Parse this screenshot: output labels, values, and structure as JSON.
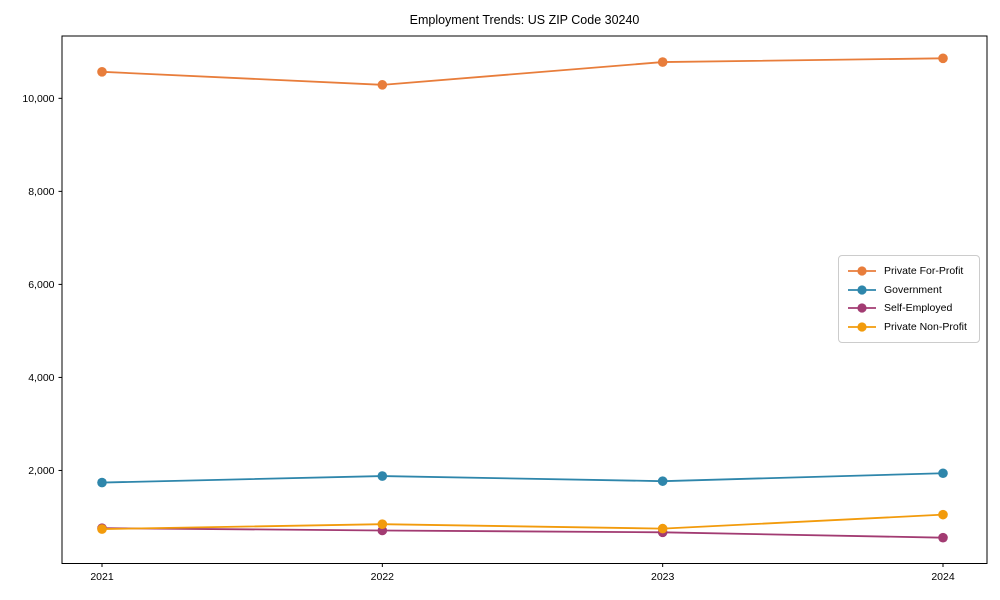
{
  "figure": {
    "background": "#ffffff",
    "axis_color": "#000000",
    "text_color": "#000000",
    "legend_border_color": "#cccccc"
  },
  "chart_data": {
    "type": "line",
    "title": "Employment Trends: US ZIP Code 30240",
    "xlabel": "",
    "ylabel": "",
    "grid": false,
    "legend_position": "center-right",
    "x": [
      2021,
      2022,
      2023,
      2024
    ],
    "x_tick_labels": [
      "2021",
      "2022",
      "2023",
      "2024"
    ],
    "ylim": [
      0,
      11340
    ],
    "yticks": [
      2000,
      4000,
      6000,
      8000,
      10000
    ],
    "ytick_labels": [
      "2,000",
      "4,000",
      "6,000",
      "8,000",
      "10,000"
    ],
    "series": [
      {
        "name": "Private For-Profit",
        "color": "#E87D3B",
        "values": [
          10570,
          10290,
          10780,
          10860
        ]
      },
      {
        "name": "Government",
        "color": "#2E86AB",
        "values": [
          1740,
          1880,
          1770,
          1940
        ]
      },
      {
        "name": "Self-Employed",
        "color": "#A23B72",
        "values": [
          760,
          710,
          670,
          555
        ]
      },
      {
        "name": "Private Non-Profit",
        "color": "#F29B0C",
        "values": [
          740,
          845,
          750,
          1050
        ]
      }
    ]
  }
}
